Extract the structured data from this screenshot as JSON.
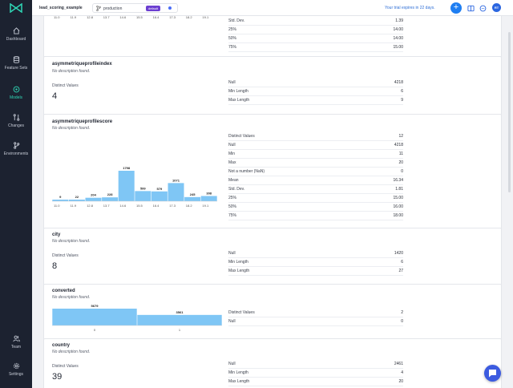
{
  "sidebar": {
    "items": [
      {
        "label": "Dashboard",
        "icon": "home-icon"
      },
      {
        "label": "Feature Sets",
        "icon": "database-icon"
      },
      {
        "label": "Models",
        "icon": "models-icon",
        "active": true
      },
      {
        "label": "Changes",
        "icon": "changes-icon"
      },
      {
        "label": "Environments",
        "icon": "branch-icon"
      }
    ],
    "bottom": [
      {
        "label": "Team",
        "icon": "team-icon"
      },
      {
        "label": "Settings",
        "icon": "gear-icon"
      }
    ]
  },
  "topbar": {
    "project": "lead_scoring_example",
    "branch": "production",
    "branch_badge": "default",
    "trial_text": "Your trial expires in 22 days.",
    "add_label": "+",
    "avatar_initials": "RT"
  },
  "colors": {
    "accent": "#2fd6b5",
    "bar": "#7fc6f5",
    "brand": "#1e7ef2",
    "badge": "#6c3fd1"
  },
  "top_partial": {
    "ticks": [
      "11.0",
      "11.9",
      "12.8",
      "13.7",
      "14.6",
      "15.5",
      "16.4",
      "17.3",
      "18.2",
      "19.1"
    ],
    "stats": [
      {
        "k": "Std. Dev.",
        "v": "1.39"
      },
      {
        "k": "25%",
        "v": "14.00"
      },
      {
        "k": "50%",
        "v": "14.00"
      },
      {
        "k": "75%",
        "v": "15.00"
      }
    ]
  },
  "features": [
    {
      "name": "asymmetriqueprofileindex",
      "desc": "No description found.",
      "dv_label": "Distinct Values",
      "dv": "4",
      "stats": [
        {
          "k": "Null",
          "v": "4218"
        },
        {
          "k": "Min Length",
          "v": "6"
        },
        {
          "k": "Max Length",
          "v": "9"
        }
      ]
    },
    {
      "name": "asymmetriqueprofilescore",
      "desc": "No description found.",
      "stats": [
        {
          "k": "Distinct Values",
          "v": "12"
        },
        {
          "k": "Null",
          "v": "4218"
        },
        {
          "k": "Min",
          "v": "11"
        },
        {
          "k": "Max",
          "v": "20"
        },
        {
          "k": "Not a number (NaN)",
          "v": "0"
        },
        {
          "k": "Mean",
          "v": "16.34"
        },
        {
          "k": "Std. Dev.",
          "v": "1.81"
        },
        {
          "k": "25%",
          "v": "15.00"
        },
        {
          "k": "50%",
          "v": "16.00"
        },
        {
          "k": "75%",
          "v": "18.00"
        }
      ]
    },
    {
      "name": "city",
      "desc": "No description found.",
      "dv_label": "Distinct Values",
      "dv": "8",
      "stats": [
        {
          "k": "Null",
          "v": "1420"
        },
        {
          "k": "Min Length",
          "v": "6"
        },
        {
          "k": "Max Length",
          "v": "27"
        }
      ]
    },
    {
      "name": "converted",
      "desc": "No description found.",
      "stats": [
        {
          "k": "Distinct Values",
          "v": "2"
        },
        {
          "k": "Null",
          "v": "0"
        }
      ]
    },
    {
      "name": "country",
      "desc": "No description found.",
      "dv_label": "Distinct Values",
      "dv": "39",
      "stats": [
        {
          "k": "Null",
          "v": "2461"
        },
        {
          "k": "Min Length",
          "v": "4"
        },
        {
          "k": "Max Length",
          "v": "20"
        }
      ]
    }
  ],
  "chart_data": [
    {
      "type": "bar",
      "feature": "asymmetriqueprofilescore",
      "categories": [
        "11.0",
        "11.9",
        "12.8",
        "13.7",
        "14.6",
        "15.5",
        "16.4",
        "17.3",
        "18.2",
        "19.1"
      ],
      "values": [
        9,
        22,
        204,
        228,
        1798,
        599,
        579,
        1071,
        245,
        308
      ],
      "tick_labels": [
        "11.0",
        "11.9",
        "12.8",
        "13.7",
        "14.6",
        "15.5",
        "16.4",
        "17.3",
        "18.2",
        "19.1"
      ]
    },
    {
      "type": "bar",
      "feature": "converted",
      "categories": [
        "0",
        "1"
      ],
      "values": [
        5679,
        3561
      ],
      "tick_labels": [
        "0",
        "1"
      ]
    }
  ]
}
